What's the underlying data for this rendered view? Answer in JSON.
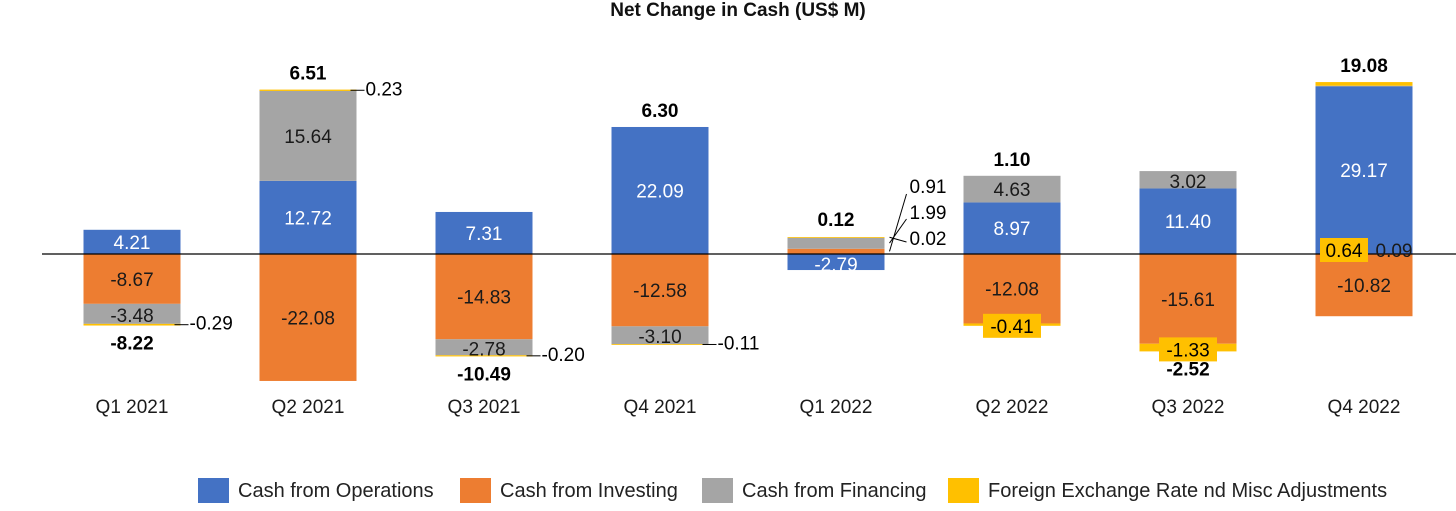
{
  "chart_data": {
    "type": "bar",
    "stacked": true,
    "title": "Net Change in Cash (US$ M)",
    "categories": [
      "Q1 2021",
      "Q2 2021",
      "Q3 2021",
      "Q4 2021",
      "Q1 2022",
      "Q2 2022",
      "Q3 2022",
      "Q4 2022"
    ],
    "series": [
      {
        "name": "Cash from Operations",
        "color": "#4472C4",
        "values": [
          4.21,
          12.72,
          7.31,
          22.09,
          -2.79,
          8.97,
          11.4,
          29.17
        ],
        "labels": [
          "4.21",
          "12.72",
          "7.31",
          "22.09",
          "-2.79",
          "8.97",
          "11.40",
          "29.17"
        ]
      },
      {
        "name": "Cash from Investing",
        "color": "#ED7D31",
        "values": [
          -8.67,
          -22.08,
          -14.83,
          -12.58,
          0.91,
          -12.08,
          -15.61,
          -10.82
        ],
        "labels": [
          "-8.67",
          "-22.08",
          "-14.83",
          "-12.58",
          "0.91",
          "-12.08",
          "-15.61",
          "-10.82"
        ]
      },
      {
        "name": "Cash from Financing",
        "color": "#A5A5A5",
        "values": [
          -3.48,
          15.64,
          -2.78,
          -3.1,
          1.99,
          4.63,
          3.02,
          0.09
        ],
        "labels": [
          "-3.48",
          "15.64",
          "-2.78",
          "-3.10",
          "1.99",
          "4.63",
          "3.02",
          "0.09"
        ]
      },
      {
        "name": "Foreign Exchange Rate nd Misc Adjustments",
        "color": "#FFC000",
        "values": [
          -0.29,
          0.23,
          -0.2,
          -0.11,
          0.02,
          -0.41,
          -1.33,
          0.64
        ],
        "labels": [
          "-0.29",
          "0.23",
          "-0.20",
          "-0.11",
          "0.02",
          "-0.41",
          "-1.33",
          "0.64"
        ]
      }
    ],
    "totals": [
      -8.22,
      6.51,
      -10.49,
      6.3,
      0.12,
      1.1,
      -2.52,
      19.08
    ],
    "total_labels": [
      "-8.22",
      "6.51",
      "-10.49",
      "6.30",
      "0.12",
      "1.10",
      "-2.52",
      "19.08"
    ],
    "legend_position": "bottom",
    "grid": false
  }
}
